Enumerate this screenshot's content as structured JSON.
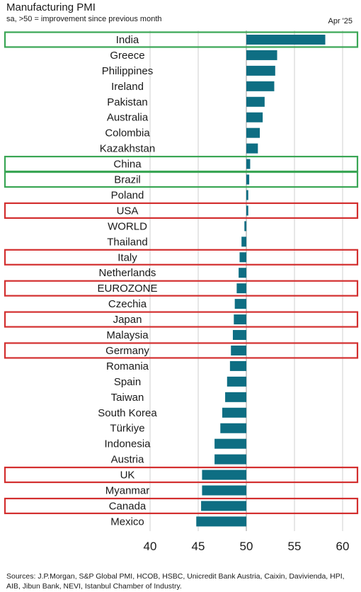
{
  "chart_data": {
    "type": "bar",
    "orientation": "horizontal",
    "title": "Manufacturing PMI",
    "subtitle": "sa, >50 = improvement since previous month",
    "period": "Apr '25",
    "categories": [
      "India",
      "Greece",
      "Philippines",
      "Ireland",
      "Pakistan",
      "Australia",
      "Colombia",
      "Kazakhstan",
      "China",
      "Brazil",
      "Poland",
      "USA",
      "WORLD",
      "Thailand",
      "Italy",
      "Netherlands",
      "EUROZONE",
      "Czechia",
      "Japan",
      "Malaysia",
      "Germany",
      "Romania",
      "Spain",
      "Taiwan",
      "South Korea",
      "Türkiye",
      "Indonesia",
      "Austria",
      "UK",
      "Myanmar",
      "Canada",
      "Mexico"
    ],
    "values": [
      58.2,
      53.2,
      53.0,
      52.9,
      51.9,
      51.7,
      51.4,
      51.2,
      50.4,
      50.3,
      50.2,
      50.2,
      49.8,
      49.5,
      49.3,
      49.2,
      49.0,
      48.8,
      48.7,
      48.6,
      48.4,
      48.3,
      48.0,
      47.8,
      47.5,
      47.3,
      46.7,
      46.7,
      45.4,
      45.4,
      45.3,
      44.8
    ],
    "highlight_green": [
      "India",
      "China",
      "Brazil"
    ],
    "highlight_red": [
      "USA",
      "Italy",
      "EUROZONE",
      "Japan",
      "Germany",
      "UK",
      "Canada"
    ],
    "xticks": [
      40,
      45,
      50,
      55,
      60
    ],
    "xlim": [
      40,
      61.5
    ],
    "baseline": 50,
    "grid": true,
    "colors": {
      "bar": "#0e6e83",
      "green_box": "#3aa655",
      "red_box": "#d32f2f",
      "grid": "#cfcfcf"
    }
  },
  "source": "Sources: J.P.Morgan, S&P Global PMI, HCOB, HSBC, Unicredit Bank Austria, Caixin, Davivienda, HPI, AIB, Jibun Bank, NEVI, Istanbul Chamber of Industry."
}
